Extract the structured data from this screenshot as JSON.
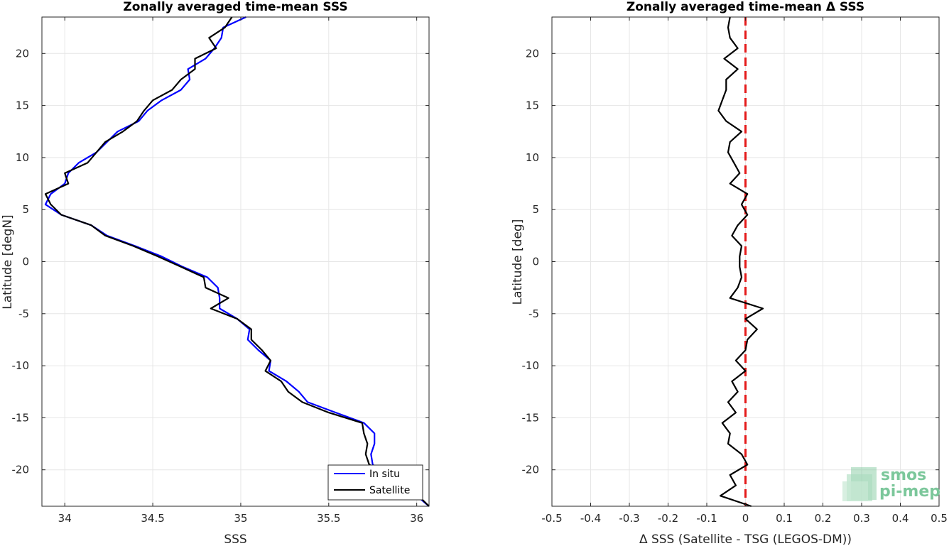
{
  "chart_data": [
    {
      "type": "line",
      "title": "Zonally averaged time-mean SSS",
      "xlabel": "SSS",
      "ylabel": "Latitude [degN]",
      "xlim": [
        33.87,
        36.07
      ],
      "ylim": [
        -23.5,
        23.5
      ],
      "xticks": [
        34,
        34.5,
        35,
        35.5,
        36
      ],
      "xtick_labels": [
        "34",
        "34.5",
        "35",
        "35.5",
        "36"
      ],
      "yticks": [
        20,
        15,
        10,
        5,
        0,
        -5,
        -10,
        -15,
        -20
      ],
      "ytick_labels": [
        "20",
        "15",
        "10",
        "5",
        "0",
        "-5",
        "-10",
        "-15",
        "-20"
      ],
      "grid": true,
      "legend": "bottom-right",
      "series": [
        {
          "name": "In situ",
          "color": "#0000ff",
          "points": [
            [
              35.03,
              23.5
            ],
            [
              34.9,
              22.5
            ],
            [
              34.89,
              21.5
            ],
            [
              34.85,
              20.5
            ],
            [
              34.8,
              19.5
            ],
            [
              34.7,
              18.5
            ],
            [
              34.71,
              17.5
            ],
            [
              34.66,
              16.5
            ],
            [
              34.55,
              15.5
            ],
            [
              34.47,
              14.5
            ],
            [
              34.42,
              13.5
            ],
            [
              34.3,
              12.5
            ],
            [
              34.24,
              11.5
            ],
            [
              34.18,
              10.5
            ],
            [
              34.08,
              9.5
            ],
            [
              34.02,
              8.5
            ],
            [
              34.0,
              7.5
            ],
            [
              33.92,
              6.5
            ],
            [
              33.89,
              5.5
            ],
            [
              33.98,
              4.5
            ],
            [
              34.15,
              3.5
            ],
            [
              34.24,
              2.5
            ],
            [
              34.4,
              1.5
            ],
            [
              34.55,
              0.5
            ],
            [
              34.67,
              -0.5
            ],
            [
              34.81,
              -1.5
            ],
            [
              34.87,
              -2.5
            ],
            [
              34.88,
              -3.5
            ],
            [
              34.88,
              -4.5
            ],
            [
              34.98,
              -5.5
            ],
            [
              35.05,
              -6.5
            ],
            [
              35.04,
              -7.5
            ],
            [
              35.1,
              -8.5
            ],
            [
              35.17,
              -9.5
            ],
            [
              35.16,
              -10.5
            ],
            [
              35.26,
              -11.5
            ],
            [
              35.33,
              -12.5
            ],
            [
              35.38,
              -13.5
            ],
            [
              35.54,
              -14.5
            ],
            [
              35.7,
              -15.5
            ],
            [
              35.76,
              -16.5
            ],
            [
              35.76,
              -17.5
            ],
            [
              35.74,
              -18.5
            ],
            [
              35.75,
              -19.5
            ],
            [
              35.83,
              -20.5
            ],
            [
              35.9,
              -21.5
            ],
            [
              36.0,
              -22.5
            ],
            [
              36.07,
              -23.5
            ]
          ]
        },
        {
          "name": "Satellite",
          "color": "#000000",
          "points": [
            [
              34.95,
              23.5
            ],
            [
              34.91,
              22.5
            ],
            [
              34.82,
              21.5
            ],
            [
              34.86,
              20.5
            ],
            [
              34.74,
              19.5
            ],
            [
              34.74,
              18.5
            ],
            [
              34.66,
              17.5
            ],
            [
              34.61,
              16.5
            ],
            [
              34.5,
              15.5
            ],
            [
              34.45,
              14.5
            ],
            [
              34.41,
              13.5
            ],
            [
              34.33,
              12.5
            ],
            [
              34.23,
              11.5
            ],
            [
              34.18,
              10.5
            ],
            [
              34.13,
              9.5
            ],
            [
              34.0,
              8.5
            ],
            [
              34.02,
              7.5
            ],
            [
              33.89,
              6.5
            ],
            [
              33.92,
              5.5
            ],
            [
              33.98,
              4.5
            ],
            [
              34.15,
              3.5
            ],
            [
              34.23,
              2.5
            ],
            [
              34.39,
              1.5
            ],
            [
              34.53,
              0.5
            ],
            [
              34.66,
              -0.5
            ],
            [
              34.79,
              -1.5
            ],
            [
              34.8,
              -2.5
            ],
            [
              34.93,
              -3.5
            ],
            [
              34.83,
              -4.5
            ],
            [
              34.98,
              -5.5
            ],
            [
              35.06,
              -6.5
            ],
            [
              35.06,
              -7.5
            ],
            [
              35.12,
              -8.5
            ],
            [
              35.17,
              -9.5
            ],
            [
              35.14,
              -10.5
            ],
            [
              35.23,
              -11.5
            ],
            [
              35.27,
              -12.5
            ],
            [
              35.35,
              -13.5
            ],
            [
              35.5,
              -14.5
            ],
            [
              35.69,
              -15.5
            ],
            [
              35.7,
              -16.5
            ],
            [
              35.72,
              -17.5
            ],
            [
              35.71,
              -18.5
            ],
            [
              35.73,
              -19.5
            ],
            [
              35.84,
              -20.5
            ],
            [
              35.93,
              -21.5
            ],
            [
              36.01,
              -22.5
            ],
            [
              36.07,
              -23.5
            ]
          ]
        }
      ]
    },
    {
      "type": "line",
      "title": "Zonally averaged time-mean Δ SSS",
      "xlabel": "Δ SSS (Satellite - TSG (LEGOS-DM))",
      "ylabel": "Latitude [deg]",
      "xlim": [
        -0.5,
        0.5
      ],
      "ylim": [
        -23.5,
        23.5
      ],
      "xticks": [
        -0.5,
        -0.4,
        -0.3,
        -0.2,
        -0.1,
        0,
        0.1,
        0.2,
        0.3,
        0.4,
        0.5
      ],
      "xtick_labels": [
        "-0.5",
        "-0.4",
        "-0.3",
        "-0.2",
        "-0.1",
        "0",
        "0.1",
        "0.2",
        "0.3",
        "0.4",
        "0.5"
      ],
      "yticks": [
        20,
        15,
        10,
        5,
        0,
        -5,
        -10,
        -15,
        -20
      ],
      "ytick_labels": [
        "20",
        "15",
        "10",
        "5",
        "0",
        "-5",
        "-10",
        "-15",
        "-20"
      ],
      "grid": true,
      "zero_line": {
        "x": 0,
        "color": "#e41a1a",
        "style": "dashed"
      },
      "series": [
        {
          "color": "#000000",
          "points": [
            [
              -0.04,
              23.5
            ],
            [
              -0.045,
              22.5
            ],
            [
              -0.04,
              21.5
            ],
            [
              -0.02,
              20.5
            ],
            [
              -0.055,
              19.5
            ],
            [
              -0.02,
              18.5
            ],
            [
              -0.05,
              17.5
            ],
            [
              -0.05,
              16.5
            ],
            [
              -0.06,
              15.5
            ],
            [
              -0.07,
              14.5
            ],
            [
              -0.05,
              13.5
            ],
            [
              -0.01,
              12.5
            ],
            [
              -0.04,
              11.5
            ],
            [
              -0.045,
              10.5
            ],
            [
              -0.03,
              9.5
            ],
            [
              -0.015,
              8.5
            ],
            [
              -0.04,
              7.5
            ],
            [
              0.005,
              6.5
            ],
            [
              -0.01,
              5.5
            ],
            [
              0.005,
              4.5
            ],
            [
              -0.02,
              3.5
            ],
            [
              -0.035,
              2.5
            ],
            [
              -0.01,
              1.5
            ],
            [
              -0.015,
              0.5
            ],
            [
              -0.015,
              -0.5
            ],
            [
              -0.01,
              -1.5
            ],
            [
              -0.02,
              -2.5
            ],
            [
              -0.04,
              -3.5
            ],
            [
              0.045,
              -4.5
            ],
            [
              0.0,
              -5.5
            ],
            [
              0.03,
              -6.5
            ],
            [
              0.005,
              -7.5
            ],
            [
              0.0,
              -8.5
            ],
            [
              -0.025,
              -9.5
            ],
            [
              0.0,
              -10.5
            ],
            [
              -0.035,
              -11.5
            ],
            [
              -0.02,
              -12.5
            ],
            [
              -0.045,
              -13.5
            ],
            [
              -0.025,
              -14.5
            ],
            [
              -0.06,
              -15.5
            ],
            [
              -0.04,
              -16.5
            ],
            [
              -0.045,
              -17.5
            ],
            [
              -0.01,
              -18.5
            ],
            [
              0.005,
              -19.5
            ],
            [
              -0.04,
              -20.5
            ],
            [
              -0.025,
              -21.5
            ],
            [
              -0.065,
              -22.5
            ],
            [
              0.015,
              -23.5
            ]
          ]
        }
      ]
    }
  ],
  "legend": {
    "items": [
      "In situ",
      "Satellite"
    ]
  },
  "logo": {
    "line1": "smos",
    "line2": "pi-mep",
    "color": "#7cc79b"
  }
}
